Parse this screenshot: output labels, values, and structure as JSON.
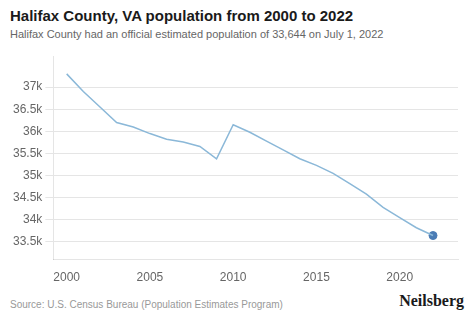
{
  "chart_data": {
    "type": "line",
    "title": "Halifax County, VA population from 2000 to 2022",
    "subtitle": "Halifax County had an official estimated population of 33,644 on July 1, 2022",
    "annotations": [
      "Source: U.S. Census Bureau (Population Estimates Program)",
      "Neilsberg"
    ],
    "x": [
      2000,
      2001,
      2002,
      2003,
      2004,
      2005,
      2006,
      2007,
      2008,
      2009,
      2010,
      2011,
      2012,
      2013,
      2014,
      2015,
      2016,
      2017,
      2018,
      2019,
      2020,
      2021,
      2022
    ],
    "series": [
      {
        "values": [
          37300,
          36900,
          36550,
          36200,
          36100,
          35950,
          35820,
          35760,
          35660,
          35380,
          36150,
          35980,
          35780,
          35580,
          35380,
          35230,
          35050,
          34820,
          34580,
          34280,
          34050,
          33820,
          33644
        ],
        "color": "#8bb8d8",
        "line_style": "solid",
        "marker": "none"
      },
      {
        "type": "scatter",
        "x": [
          2022
        ],
        "values": [
          33644
        ],
        "color": "#4a7cb5",
        "marker": "circle"
      }
    ],
    "xlim": [
      1999.2,
      2023.5
    ],
    "xticks": [
      2000,
      2005,
      2010,
      2015,
      2020
    ],
    "ylim": [
      33100,
      37700
    ],
    "yticks": [
      {
        "value": 33500,
        "label": "33.5k"
      },
      {
        "value": 34000,
        "label": "34k"
      },
      {
        "value": 34500,
        "label": "34.5k"
      },
      {
        "value": 35000,
        "label": "35k"
      },
      {
        "value": 35500,
        "label": "35.5k"
      },
      {
        "value": 36000,
        "label": "36k"
      },
      {
        "value": 36500,
        "label": "36.5k"
      },
      {
        "value": 37000,
        "label": "37k"
      }
    ],
    "grid": true
  }
}
